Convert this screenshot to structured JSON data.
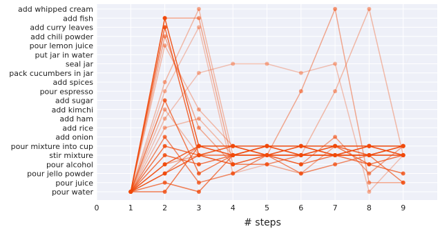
{
  "chart_data": {
    "type": "line",
    "title": "",
    "xlabel": "# steps",
    "ylabel": "",
    "xlim": [
      0,
      10
    ],
    "x_ticks": [
      0,
      1,
      2,
      3,
      4,
      5,
      6,
      7,
      8,
      9
    ],
    "y_categories": [
      "pour water",
      "pour juice",
      "pour jello powder",
      "pour alcohol",
      "stir mixture",
      "pour mixture into cup",
      "add onion",
      "add rice",
      "add ham",
      "add kimchi",
      "add sugar",
      "pour espresso",
      "add spices",
      "pack cucumbers in jar",
      "seal jar",
      "put jar in water",
      "pour lemon juice",
      "add chili powder",
      "add curry leaves",
      "add fish",
      "add whipped cream"
    ],
    "grid": true,
    "colors": {
      "line": "#f04a0c",
      "marker": "#f04a0c",
      "plot_bg": "#eef0f8",
      "grid": "#ffffff"
    },
    "series": [
      {
        "x": [
          1,
          2,
          3,
          4,
          5,
          6,
          7,
          8,
          9
        ],
        "y": [
          "pour water",
          "add fish",
          "pour mixture into cup",
          "pour mixture into cup",
          "pour mixture into cup",
          "pour mixture into cup",
          "pour mixture into cup",
          "pour mixture into cup",
          "pour mixture into cup"
        ],
        "opacity": 0.9
      },
      {
        "x": [
          1,
          2,
          3,
          4,
          5,
          6,
          7,
          8,
          9
        ],
        "y": [
          "pour water",
          "add curry leaves",
          "stir mixture",
          "stir mixture",
          "stir mixture",
          "stir mixture",
          "stir mixture",
          "stir mixture",
          "stir mixture"
        ],
        "opacity": 0.8
      },
      {
        "x": [
          1,
          2,
          3,
          4,
          5,
          6,
          7,
          8,
          9
        ],
        "y": [
          "pour water",
          "pour alcohol",
          "pour mixture into cup",
          "stir mixture",
          "pour mixture into cup",
          "stir mixture",
          "pour mixture into cup",
          "stir mixture",
          "pour mixture into cup"
        ],
        "opacity": 0.85
      },
      {
        "x": [
          1,
          2,
          3,
          4,
          5,
          6,
          7,
          8,
          9
        ],
        "y": [
          "pour water",
          "pour jello powder",
          "stir mixture",
          "pour mixture into cup",
          "stir mixture",
          "pour mixture into cup",
          "stir mixture",
          "pour mixture into cup",
          "stir mixture"
        ],
        "opacity": 0.85
      },
      {
        "x": [
          1,
          2,
          3,
          4,
          5,
          6,
          7,
          8,
          9
        ],
        "y": [
          "pour water",
          "stir mixture",
          "pour alcohol",
          "stir mixture",
          "pour mixture into cup",
          "pour mixture into cup",
          "stir mixture",
          "stir mixture",
          "pour mixture into cup"
        ],
        "opacity": 0.75
      },
      {
        "x": [
          1,
          2,
          3,
          4,
          5,
          6,
          7,
          8,
          9
        ],
        "y": [
          "pour water",
          "pour mixture into cup",
          "stir mixture",
          "pour alcohol",
          "stir mixture",
          "pour alcohol",
          "stir mixture",
          "pour alcohol",
          "stir mixture"
        ],
        "opacity": 0.75
      },
      {
        "x": [
          1,
          2,
          3,
          4,
          5,
          6,
          7,
          8,
          9
        ],
        "y": [
          "pour water",
          "add sugar",
          "pour jello powder",
          "stir mixture",
          "pour mixture into cup",
          "stir mixture",
          "pour mixture into cup",
          "pour alcohol",
          "pour jello powder"
        ],
        "opacity": 0.7
      },
      {
        "x": [
          1,
          2,
          3,
          4,
          5,
          6,
          7,
          8,
          9
        ],
        "y": [
          "pour water",
          "add onion",
          "pour juice",
          "pour jello powder",
          "stir mixture",
          "pour jello powder",
          "pour alcohol",
          "stir mixture",
          "pour juice"
        ],
        "opacity": 0.65
      },
      {
        "x": [
          1,
          2,
          3,
          4,
          5,
          6,
          7,
          8,
          9
        ],
        "y": [
          "pour water",
          "pour juice",
          "pour water",
          "stir mixture",
          "stir mixture",
          "pour mixture into cup",
          "pour mixture into cup",
          "pour mixture into cup",
          "pour mixture into cup"
        ],
        "opacity": 0.7
      },
      {
        "x": [
          1,
          2,
          3,
          4,
          5,
          6,
          7,
          8,
          9
        ],
        "y": [
          "pour water",
          "pour water",
          "pour mixture into cup",
          "pour mixture into cup",
          "stir mixture",
          "stir mixture",
          "stir mixture",
          "pour mixture into cup",
          "stir mixture"
        ],
        "opacity": 0.7
      },
      {
        "x": [
          1,
          2,
          3,
          4,
          5,
          6,
          7,
          8,
          9
        ],
        "y": [
          "pour water",
          "add fish",
          "add fish",
          "pour alcohol",
          "pour alcohol",
          "pour jello powder",
          "pour mixture into cup",
          "pour mixture into cup",
          "pour mixture into cup"
        ],
        "opacity": 0.45
      },
      {
        "x": [
          1,
          2,
          3,
          4,
          5,
          6,
          7,
          8,
          9
        ],
        "y": [
          "pour water",
          "add spices",
          "add whipped cream",
          "stir mixture",
          "stir mixture",
          "stir mixture",
          "stir mixture",
          "stir mixture",
          "stir mixture"
        ],
        "opacity": 0.35
      },
      {
        "x": [
          1,
          2,
          3,
          4,
          5,
          6,
          7,
          8,
          9
        ],
        "y": [
          "pour water",
          "pour espresso",
          "add curry leaves",
          "pour jello powder",
          "pour alcohol",
          "stir mixture",
          "stir mixture",
          "stir mixture",
          "stir mixture"
        ],
        "opacity": 0.3
      },
      {
        "x": [
          1,
          2,
          3,
          4,
          5,
          6,
          7,
          8,
          9
        ],
        "y": [
          "pour water",
          "pour lemon juice",
          "add kimchi",
          "pour mixture into cup",
          "stir mixture",
          "stir mixture",
          "stir mixture",
          "stir mixture",
          "stir mixture"
        ],
        "opacity": 0.35
      },
      {
        "x": [
          1,
          2,
          3,
          4,
          5,
          6,
          7,
          8,
          9
        ],
        "y": [
          "pour water",
          "add rice",
          "add ham",
          "stir mixture",
          "pour mixture into cup",
          "pour mixture into cup",
          "stir mixture",
          "stir mixture",
          "pour mixture into cup"
        ],
        "opacity": 0.35
      },
      {
        "x": [
          1,
          2,
          3,
          4,
          5,
          6,
          7,
          8,
          9
        ],
        "y": [
          "pour water",
          "add chili powder",
          "add rice",
          "pour alcohol",
          "stir mixture",
          "pour espresso",
          "add whipped cream",
          "pour juice",
          "pour juice"
        ],
        "opacity": 0.45
      },
      {
        "x": [
          1,
          2,
          3,
          4,
          5,
          6,
          7,
          8,
          9
        ],
        "y": [
          "pour water",
          "add ham",
          "pack cucumbers in jar",
          "seal jar",
          "seal jar",
          "pack cucumbers in jar",
          "seal jar",
          "pour water",
          "stir mixture"
        ],
        "opacity": 0.3
      },
      {
        "x": [
          1,
          2,
          3,
          4,
          5,
          6,
          7,
          8,
          9
        ],
        "y": [
          "pour water",
          "add kimchi",
          "stir mixture",
          "pour mixture into cup",
          "pour mixture into cup",
          "stir mixture",
          "pour espresso",
          "add whipped cream",
          "stir mixture"
        ],
        "opacity": 0.35
      },
      {
        "x": [
          1,
          2,
          3,
          4,
          5,
          6,
          7,
          8,
          9
        ],
        "y": [
          "pour water",
          "pour jello powder",
          "pour mixture into cup",
          "stir mixture",
          "stir mixture",
          "pour alcohol",
          "add onion",
          "pour jello powder",
          "pour mixture into cup"
        ],
        "opacity": 0.5
      },
      {
        "x": [
          1,
          2,
          3,
          4,
          5,
          6,
          7,
          8,
          9
        ],
        "y": [
          "pour water",
          "pour alcohol",
          "stir mixture",
          "pour alcohol",
          "pour alcohol",
          "stir mixture",
          "stir mixture",
          "pour mixture into cup",
          "pour mixture into cup"
        ],
        "opacity": 0.45
      }
    ]
  }
}
